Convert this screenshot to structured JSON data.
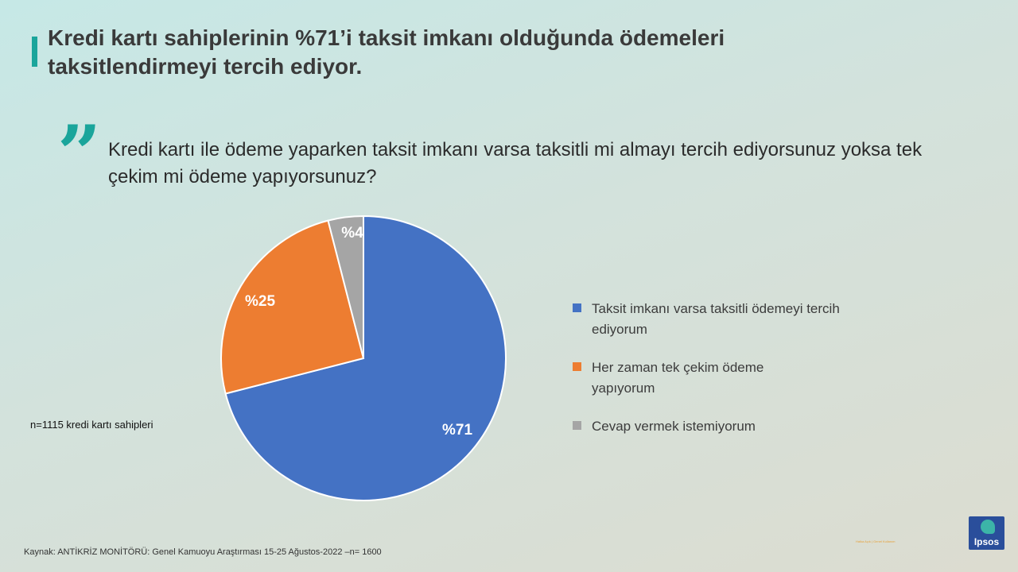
{
  "title": "Kredi kartı sahiplerinin %71’i taksit imkanı olduğunda ödemeleri taksitlendirmeyi tercih ediyor.",
  "question": "Kredi kartı ile ödeme yaparken taksit imkanı varsa taksitli mi almayı tercih ediyorsunuz yoksa tek çekim mi ödeme yapıyorsunuz?",
  "quote_glyph": "”",
  "sample_note": "n=1115 kredi kartı sahipleri",
  "source": "Kaynak: ANTİKRİZ MONİTÖRÜ: Genel Kamuoyu Araştırması 15-25 Ağustos-2022 –n= 1600",
  "tiny_note": "Halka Açık | Genel Kullanım",
  "logo": {
    "text": "Ipsos",
    "color": "#2a4e9b",
    "accent": "#3cb4a8"
  },
  "chart_data": {
    "type": "pie",
    "title": "",
    "start_angle": "12 o'clock, clockwise",
    "legend_position": "right",
    "slices": [
      {
        "label": "Taksit imkanı varsa taksitli ödemeyi tercih ediyorum",
        "value": 71,
        "display": "%71",
        "color": "#4472c4"
      },
      {
        "label": "Her zaman tek çekim ödeme yapıyorum",
        "value": 25,
        "display": "%25",
        "color": "#ed7d31"
      },
      {
        "label": "Cevap vermek istemiyorum",
        "value": 4,
        "display": "%4",
        "color": "#a5a5a5"
      }
    ]
  }
}
